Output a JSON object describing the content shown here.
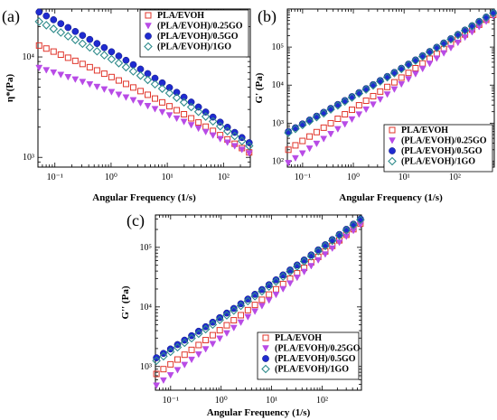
{
  "chart_data": [
    {
      "panel_label": "(a)",
      "type": "scatter",
      "xlabel": "Angular Frequency (1/s)",
      "ylabel": "η*(Pa)",
      "x_scale": "log",
      "y_scale": "log",
      "xlim": [
        0.05,
        300
      ],
      "ylim": [
        800,
        30000
      ],
      "x_ticks": [
        {
          "v": 0.1,
          "label": "10⁻¹"
        },
        {
          "v": 1,
          "label": "10⁰"
        },
        {
          "v": 10,
          "label": "10¹"
        },
        {
          "v": 100,
          "label": "10²"
        }
      ],
      "y_ticks": [
        {
          "v": 1000,
          "label": "10³"
        },
        {
          "v": 10000,
          "label": "10⁴"
        }
      ],
      "legend_position": "top-right",
      "series": [
        {
          "name": "PLA/EVOH",
          "color": "#e0352b",
          "marker": "square-open",
          "start": 13000,
          "end": 1120
        },
        {
          "name": "(PLA/EVOH)/0.25GO",
          "color": "#b84be6",
          "marker": "triangle-down",
          "start": 7800,
          "end": 1100
        },
        {
          "name": "(PLA/EVOH)/0.5GO",
          "color": "#1f2bd0",
          "marker": "circle",
          "start": 28000,
          "end": 1400
        },
        {
          "name": "(PLA/EVOH)/1GO",
          "color": "#2e8b8b",
          "marker": "diamond-open",
          "start": 22500,
          "end": 1300
        }
      ]
    },
    {
      "panel_label": "(b)",
      "type": "scatter",
      "xlabel": "Angular Frequency (1/s)",
      "ylabel": "G' (Pa)",
      "x_scale": "log",
      "y_scale": "log",
      "xlim": [
        0.05,
        600
      ],
      "ylim": [
        70,
        1000000
      ],
      "x_ticks": [
        {
          "v": 0.1,
          "label": "10⁻¹"
        },
        {
          "v": 1,
          "label": "10⁰"
        },
        {
          "v": 10,
          "label": "10¹"
        },
        {
          "v": 100,
          "label": "10²"
        }
      ],
      "y_ticks": [
        {
          "v": 100,
          "label": "10²"
        },
        {
          "v": 1000,
          "label": "10³"
        },
        {
          "v": 10000,
          "label": "10⁴"
        },
        {
          "v": 100000,
          "label": "10⁵"
        }
      ],
      "legend_position": "bottom-right",
      "series": [
        {
          "name": "PLA/EVOH",
          "color": "#e0352b",
          "marker": "square-open",
          "start": 200,
          "end": 700000
        },
        {
          "name": "(PLA/EVOH)/0.25GO",
          "color": "#b84be6",
          "marker": "triangle-down",
          "start": 90,
          "end": 650000
        },
        {
          "name": "(PLA/EVOH)/0.5GO",
          "color": "#1f2bd0",
          "marker": "circle",
          "start": 600,
          "end": 800000
        },
        {
          "name": "(PLA/EVOH)/1GO",
          "color": "#2e8b8b",
          "marker": "diamond-open",
          "start": 560,
          "end": 780000
        }
      ]
    },
    {
      "panel_label": "(c)",
      "type": "scatter",
      "xlabel": "Angular Frequency (1/s)",
      "ylabel": "G'' (Pa)",
      "x_scale": "log",
      "y_scale": "log",
      "xlim": [
        0.05,
        600
      ],
      "ylim": [
        400,
        350000
      ],
      "x_ticks": [
        {
          "v": 0.1,
          "label": "10⁻¹"
        },
        {
          "v": 1,
          "label": "10⁰"
        },
        {
          "v": 10,
          "label": "10¹"
        },
        {
          "v": 100,
          "label": "10²"
        }
      ],
      "y_ticks": [
        {
          "v": 1000,
          "label": "10³"
        },
        {
          "v": 10000,
          "label": "10⁴"
        },
        {
          "v": 100000,
          "label": "10⁵"
        }
      ],
      "legend_position": "bottom-right",
      "series": [
        {
          "name": "PLA/EVOH",
          "color": "#e0352b",
          "marker": "square-open",
          "start": 750,
          "end": 250000
        },
        {
          "name": "(PLA/EVOH)/0.25GO",
          "color": "#b84be6",
          "marker": "triangle-down",
          "start": 480,
          "end": 240000
        },
        {
          "name": "(PLA/EVOH)/0.5GO",
          "color": "#1f2bd0",
          "marker": "circle",
          "start": 1400,
          "end": 300000
        },
        {
          "name": "(PLA/EVOH)/1GO",
          "color": "#2e8b8b",
          "marker": "diamond-open",
          "start": 1250,
          "end": 290000
        }
      ]
    }
  ]
}
